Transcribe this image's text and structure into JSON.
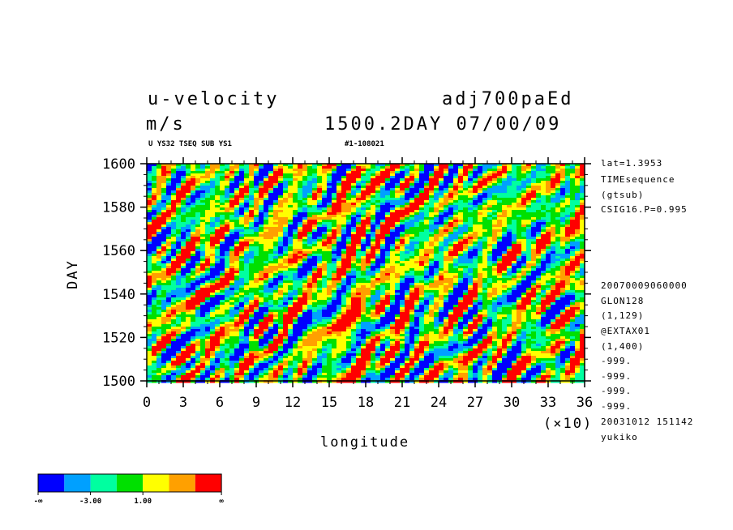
{
  "header": {
    "title_left": "u-velocity",
    "units": "m/s",
    "title_right": "adj700paEd",
    "subtitle_right": "1500.2DAY 07/00/09",
    "info_left": "U YS32 TSEQ SUB YS1",
    "info_right": "#1-108021"
  },
  "right_notes": {
    "top": [
      "lat=1.3953",
      "TIMEsequence",
      "(gtsub)",
      "CSIG16.P=0.995"
    ],
    "bottom": [
      "20070009060000",
      "GLON128",
      "(1,129)",
      "@EXTAX01",
      "(1,400)",
      "-999.",
      "-999.",
      "-999.",
      "-999.",
      "20031012 151142",
      "yukiko"
    ]
  },
  "chart_data": {
    "type": "heatmap",
    "title": "u-velocity",
    "xlabel": "longitude",
    "ylabel": "DAY",
    "x_multiplier": "(×10)",
    "xticks": [
      "0",
      "3",
      "6",
      "9",
      "12",
      "15",
      "18",
      "21",
      "24",
      "27",
      "30",
      "33",
      "36"
    ],
    "yticks": [
      "1500",
      "1520",
      "1540",
      "1560",
      "1580",
      "1600"
    ],
    "xlim": [
      0,
      36
    ],
    "ylim": [
      1500,
      1600
    ],
    "colors": [
      "#0000ff",
      "#00a0ff",
      "#00ffa0",
      "#00e000",
      "#ffff00",
      "#ffa000",
      "#ff0000"
    ],
    "colorbar_labels": [
      "-∞",
      "-3.00",
      "1.00",
      "∞"
    ]
  }
}
